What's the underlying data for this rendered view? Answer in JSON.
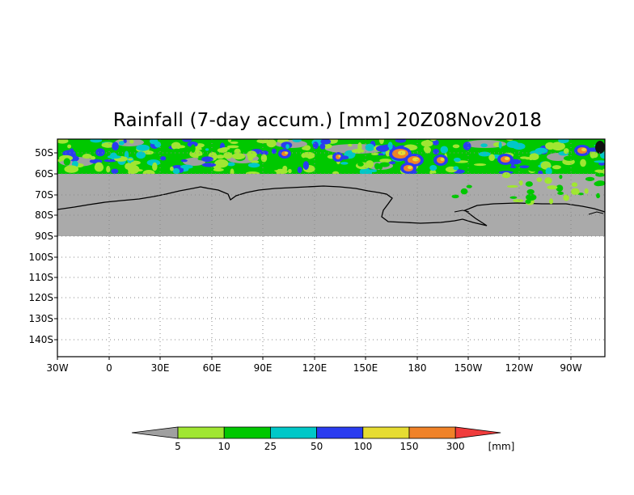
{
  "title": "Rainfall (7-day accum.) [mm] 20Z08Nov2018",
  "map": {
    "lat_labels": [
      "50S",
      "60S",
      "70S",
      "80S",
      "90S",
      "100S",
      "110S",
      "120S",
      "130S",
      "140S"
    ],
    "lon_labels": [
      "30W",
      "0",
      "30E",
      "60E",
      "90E",
      "120E",
      "150E",
      "180",
      "150W",
      "120W",
      "90W"
    ],
    "grid": true,
    "no_data_color": "#aaaaaa"
  },
  "colorbar": {
    "ticks": [
      "5",
      "10",
      "25",
      "50",
      "100",
      "150",
      "300"
    ],
    "unit": "[mm]",
    "colors": [
      "#a0a0a0",
      "#a0e632",
      "#00c800",
      "#00c8c8",
      "#2a3cf0",
      "#e6dc32",
      "#f08228",
      "#f03c3c"
    ]
  },
  "chart_data": {
    "type": "heatmap",
    "title": "Rainfall (7-day accum.) [mm] 20Z08Nov2018",
    "x_ticks": [
      "30W",
      "0",
      "30E",
      "60E",
      "90E",
      "120E",
      "150E",
      "180",
      "150W",
      "120W",
      "90W"
    ],
    "y_ticks": [
      "50S",
      "60S",
      "70S",
      "80S",
      "90S",
      "100S",
      "110S",
      "120S",
      "130S",
      "140S"
    ],
    "color_levels": [
      5,
      10,
      25,
      50,
      100,
      150,
      300
    ],
    "unit": "[mm]"
  }
}
